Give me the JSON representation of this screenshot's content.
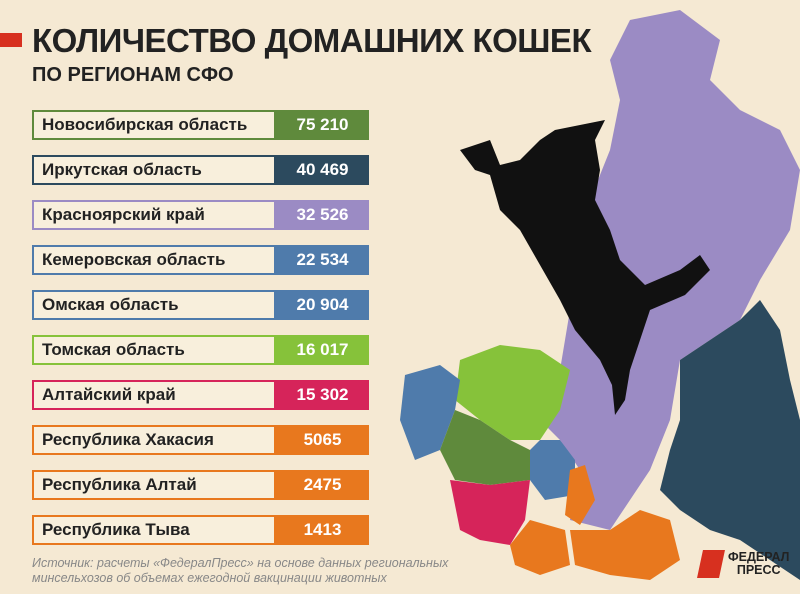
{
  "header": {
    "title": "КОЛИЧЕСТВО ДОМАШНИХ КОШЕК",
    "subtitle": "ПО РЕГИОНАМ СФО"
  },
  "chart_data": {
    "type": "table",
    "title": "КОЛИЧЕСТВО ДОМАШНИХ КОШЕК ПО РЕГИОНАМ СФО",
    "categories": [
      "Новосибирская область",
      "Иркутская область",
      "Красноярский край",
      "Кемеровская область",
      "Омская область",
      "Томская область",
      "Алтайский край",
      "Республика Хакасия",
      "Республика Алтай",
      "Республика Тыва"
    ],
    "values": [
      75210,
      40469,
      32526,
      22534,
      20904,
      16017,
      15302,
      5065,
      2475,
      1413
    ],
    "value_labels": [
      "75 210",
      "40 469",
      "32 526",
      "22 534",
      "20 904",
      "16 017",
      "15 302",
      "5065",
      "2475",
      "1413"
    ],
    "colors": [
      "#5f8a3c",
      "#2c4a5e",
      "#9b8bc4",
      "#4f7bab",
      "#4f7bab",
      "#86c23a",
      "#d6245a",
      "#e8781e",
      "#e8781e",
      "#e8781e"
    ]
  },
  "footer": {
    "source_line1": "Источник: расчеты «ФедералПресс» на основе данных региональных",
    "source_line2": "минсельхозов об объемах ежегодной вакцинации животных"
  },
  "logo": {
    "line1": "ФЕДЕРАЛ",
    "line2": "ПРЕСС"
  }
}
